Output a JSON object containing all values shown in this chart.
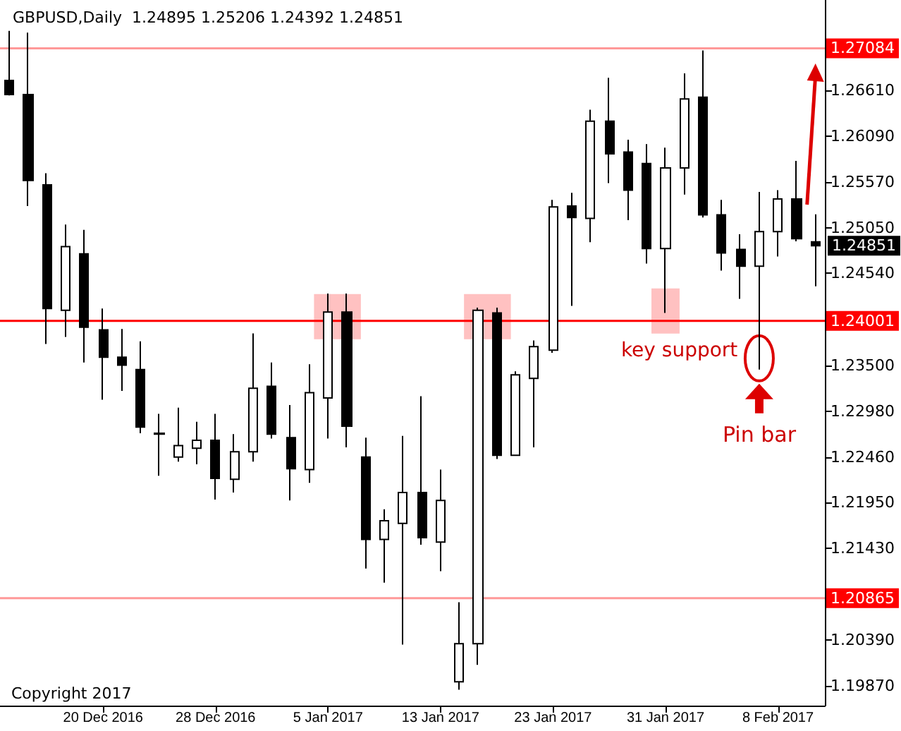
{
  "chart_data": {
    "type": "candlestick",
    "title": "GBPUSD,Daily  1.24895 1.25206 1.24392 1.24851",
    "categories": [
      null,
      null,
      null,
      null,
      null,
      "20 Dec 2016",
      null,
      null,
      null,
      null,
      null,
      "28 Dec 2016",
      null,
      null,
      null,
      null,
      null,
      "5 Jan 2017",
      null,
      null,
      null,
      null,
      null,
      "13 Jan 2017",
      null,
      null,
      null,
      null,
      null,
      "23 Jan 2017",
      null,
      null,
      null,
      null,
      null,
      "31 Jan 2017",
      null,
      null,
      null,
      null,
      null,
      "8 Feb 2017",
      null,
      null
    ],
    "ohlc": [
      [
        1.2672,
        1.2728,
        1.2655,
        1.2656
      ],
      [
        1.2656,
        1.2726,
        1.253,
        1.2559
      ],
      [
        1.2554,
        1.2567,
        1.2374,
        1.2414
      ],
      [
        1.2412,
        1.2509,
        1.2382,
        1.2484
      ],
      [
        1.2476,
        1.2503,
        1.2353,
        1.2393
      ],
      [
        1.239,
        1.2414,
        1.2311,
        1.2359
      ],
      [
        1.2359,
        1.2391,
        1.2321,
        1.235
      ],
      [
        1.2345,
        1.2377,
        1.2273,
        1.228
      ],
      [
        1.2273,
        1.2295,
        1.2225,
        1.2272
      ],
      [
        1.2246,
        1.2302,
        1.2241,
        1.2259
      ],
      [
        1.2256,
        1.2286,
        1.2238,
        1.2265
      ],
      [
        1.2265,
        1.2295,
        1.2198,
        1.2222
      ],
      [
        1.2221,
        1.2272,
        1.2206,
        1.2252
      ],
      [
        1.2252,
        1.2386,
        1.2241,
        1.2324
      ],
      [
        1.2326,
        1.2353,
        1.2267,
        1.2272
      ],
      [
        1.2268,
        1.2305,
        1.2197,
        1.2233
      ],
      [
        1.2232,
        1.2351,
        1.2217,
        1.2319
      ],
      [
        1.2313,
        1.2431,
        1.2267,
        1.241
      ],
      [
        1.241,
        1.2431,
        1.2257,
        1.2281
      ],
      [
        1.2246,
        1.2268,
        1.212,
        1.2153
      ],
      [
        1.2153,
        1.2187,
        1.2104,
        1.2174
      ],
      [
        1.2171,
        1.227,
        1.2034,
        1.2206
      ],
      [
        1.2206,
        1.2315,
        1.2147,
        1.2155
      ],
      [
        1.215,
        1.2232,
        1.2117,
        1.2197
      ],
      [
        1.1992,
        1.2082,
        1.1983,
        1.2035
      ],
      [
        1.2035,
        1.2415,
        1.2011,
        1.2412
      ],
      [
        1.2409,
        1.2415,
        1.2244,
        1.2248
      ],
      [
        1.2248,
        1.2343,
        1.2248,
        1.2339
      ],
      [
        1.2335,
        1.2378,
        1.2257,
        1.2371
      ],
      [
        1.2367,
        1.2537,
        1.2364,
        1.2529
      ],
      [
        1.253,
        1.2545,
        1.2417,
        1.2517
      ],
      [
        1.2516,
        1.2639,
        1.2489,
        1.2626
      ],
      [
        1.2626,
        1.2675,
        1.2556,
        1.2589
      ],
      [
        1.2591,
        1.2605,
        1.2514,
        1.2548
      ],
      [
        1.2578,
        1.26,
        1.2465,
        1.2482
      ],
      [
        1.2482,
        1.2596,
        1.2409,
        1.2573
      ],
      [
        1.2573,
        1.268,
        1.2543,
        1.2651
      ],
      [
        1.2653,
        1.2706,
        1.2517,
        1.252
      ],
      [
        1.252,
        1.2537,
        1.2457,
        1.2477
      ],
      [
        1.2481,
        1.2498,
        1.2425,
        1.2462
      ],
      [
        1.2462,
        1.2546,
        1.2345,
        1.2501
      ],
      [
        1.2501,
        1.2548,
        1.2473,
        1.2538
      ],
      [
        1.2538,
        1.2581,
        1.249,
        1.2493
      ],
      [
        1.24895,
        1.25206,
        1.24392,
        1.24851
      ]
    ],
    "colors": [
      "#000000",
      "#000000",
      "#000000",
      "#ffffff",
      "#000000",
      "#000000",
      "#000000",
      "#000000",
      "#000000",
      "#ffffff",
      "#ffffff",
      "#000000",
      "#ffffff",
      "#ffffff",
      "#000000",
      "#000000",
      "#ffffff",
      "#ffffff",
      "#000000",
      "#000000",
      "#ffffff",
      "#ffffff",
      "#000000",
      "#ffffff",
      "#ffffff",
      "#ffffff",
      "#000000",
      "#ffffff",
      "#ffffff",
      "#ffffff",
      "#000000",
      "#ffffff",
      "#000000",
      "#000000",
      "#000000",
      "#ffffff",
      "#ffffff",
      "#000000",
      "#000000",
      "#000000",
      "#ffffff",
      "#ffffff",
      "#000000",
      "#000000"
    ],
    "ylim": [
      1.1965,
      1.2763
    ],
    "yticks": [
      {
        "value": 1.1987,
        "label": "1.19870"
      },
      {
        "value": 1.2039,
        "label": "1.20390"
      },
      {
        "value": 1.2143,
        "label": "1.21430"
      },
      {
        "value": 1.2195,
        "label": "1.21950"
      },
      {
        "value": 1.2246,
        "label": "1.22460"
      },
      {
        "value": 1.2298,
        "label": "1.22980"
      },
      {
        "value": 1.235,
        "label": "1.23500"
      },
      {
        "value": 1.2454,
        "label": "1.24540"
      },
      {
        "value": 1.2505,
        "label": "1.25050"
      },
      {
        "value": 1.2557,
        "label": "1.25570"
      },
      {
        "value": 1.2609,
        "label": "1.26090"
      },
      {
        "value": 1.2661,
        "label": "1.26610"
      }
    ],
    "ref_lines": [
      {
        "axis": "y",
        "value": 1.27084,
        "label": "1.27084",
        "color": "#ff9999"
      },
      {
        "axis": "y",
        "value": 1.24001,
        "label": "1.24001",
        "color": "#ff0000"
      },
      {
        "axis": "y",
        "value": 1.20865,
        "label": "1.20865",
        "color": "#ff9999"
      }
    ],
    "annotations": [
      "Copyright 2017",
      "key support",
      "Pin bar",
      "1.24851"
    ],
    "grid": false
  }
}
